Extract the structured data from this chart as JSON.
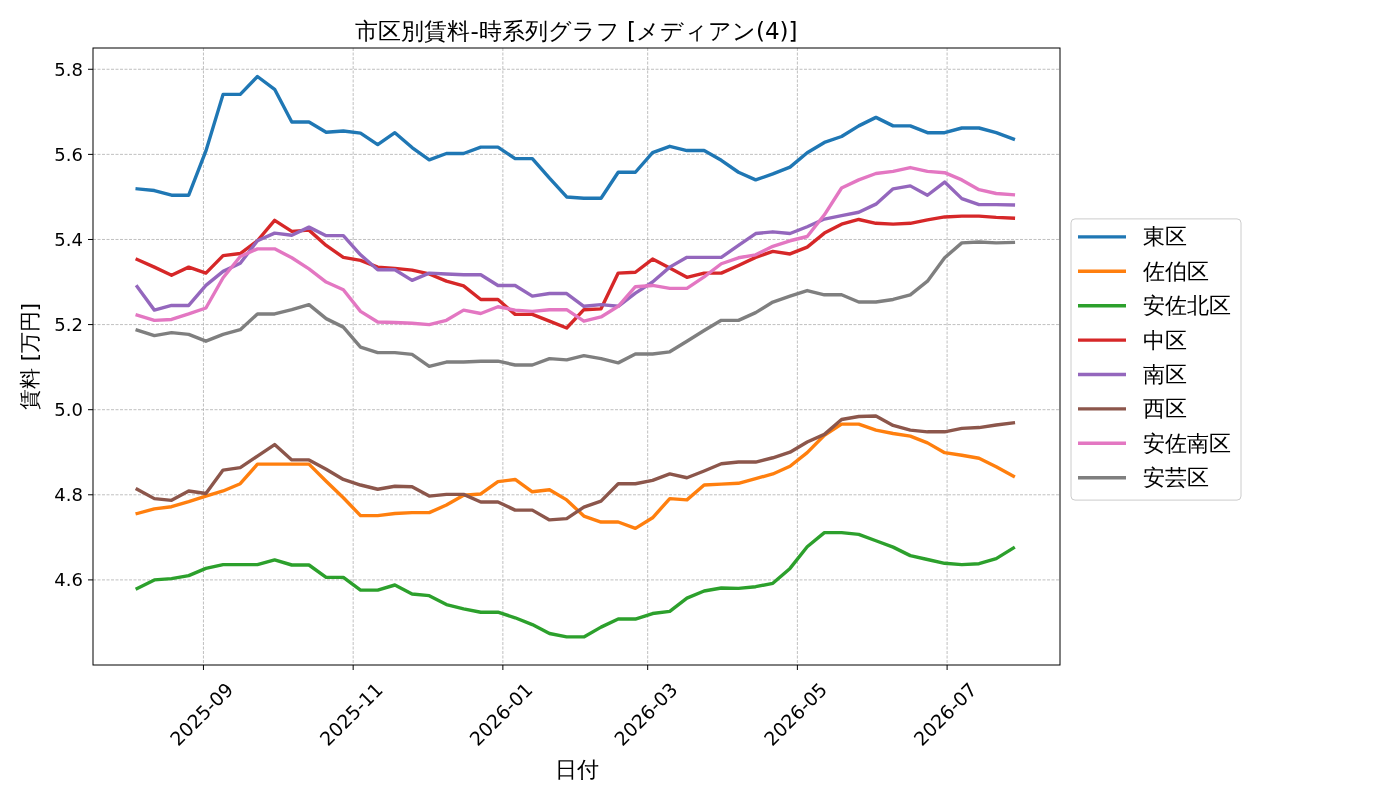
{
  "chart_data": {
    "type": "line",
    "title": "市区別賃料-時系列グラフ [メディアン(4)]",
    "xlabel": "日付",
    "ylabel": "賃料 [万円]",
    "x": [
      "2025-08-05",
      "2025-08-12",
      "2025-08-19",
      "2025-08-26",
      "2025-09-02",
      "2025-09-09",
      "2025-09-16",
      "2025-09-23",
      "2025-09-30",
      "2025-10-07",
      "2025-10-14",
      "2025-10-21",
      "2025-10-28",
      "2025-11-04",
      "2025-11-11",
      "2025-11-18",
      "2025-11-25",
      "2025-12-02",
      "2025-12-09",
      "2025-12-16",
      "2025-12-23",
      "2025-12-30",
      "2026-01-06",
      "2026-01-13",
      "2026-01-20",
      "2026-01-27",
      "2026-02-03",
      "2026-02-10",
      "2026-02-17",
      "2026-02-24",
      "2026-03-03",
      "2026-03-10",
      "2026-03-17",
      "2026-03-24",
      "2026-03-31",
      "2026-04-07",
      "2026-04-14",
      "2026-04-21",
      "2026-04-28",
      "2026-05-05",
      "2026-05-12",
      "2026-05-19",
      "2026-05-26",
      "2026-06-02",
      "2026-06-09",
      "2026-06-16",
      "2026-06-23",
      "2026-06-30",
      "2026-07-07",
      "2026-07-14",
      "2026-07-21",
      "2026-07-28"
    ],
    "series": [
      {
        "name": "東区",
        "color": "#1f77b4",
        "values": [
          5.519,
          5.515,
          5.504,
          5.504,
          5.608,
          5.741,
          5.741,
          5.783,
          5.753,
          5.676,
          5.676,
          5.652,
          5.655,
          5.65,
          5.623,
          5.651,
          5.616,
          5.587,
          5.602,
          5.602,
          5.617,
          5.617,
          5.59,
          5.59,
          5.544,
          5.5,
          5.497,
          5.497,
          5.558,
          5.558,
          5.604,
          5.619,
          5.609,
          5.609,
          5.586,
          5.558,
          5.54,
          5.554,
          5.57,
          5.604,
          5.628,
          5.642,
          5.667,
          5.687,
          5.667,
          5.667,
          5.651,
          5.651,
          5.662,
          5.662,
          5.651,
          5.636
        ]
      },
      {
        "name": "佐伯区",
        "color": "#ff7f0e",
        "values": [
          4.756,
          4.767,
          4.772,
          4.784,
          4.797,
          4.809,
          4.826,
          4.872,
          4.872,
          4.872,
          4.872,
          4.832,
          4.793,
          4.751,
          4.751,
          4.756,
          4.758,
          4.758,
          4.776,
          4.799,
          4.802,
          4.831,
          4.836,
          4.807,
          4.812,
          4.788,
          4.75,
          4.736,
          4.736,
          4.721,
          4.746,
          4.791,
          4.788,
          4.823,
          4.825,
          4.827,
          4.838,
          4.849,
          4.867,
          4.899,
          4.94,
          4.966,
          4.966,
          4.952,
          4.944,
          4.938,
          4.922,
          4.899,
          4.893,
          4.886,
          4.866,
          4.844
        ]
      },
      {
        "name": "安佐北区",
        "color": "#2ca02c",
        "values": [
          4.58,
          4.6,
          4.603,
          4.61,
          4.627,
          4.636,
          4.636,
          4.636,
          4.647,
          4.635,
          4.635,
          4.606,
          4.606,
          4.576,
          4.576,
          4.588,
          4.567,
          4.563,
          4.542,
          4.532,
          4.524,
          4.524,
          4.511,
          4.495,
          4.474,
          4.466,
          4.466,
          4.489,
          4.508,
          4.508,
          4.521,
          4.526,
          4.557,
          4.574,
          4.581,
          4.58,
          4.584,
          4.592,
          4.627,
          4.678,
          4.711,
          4.711,
          4.707,
          4.692,
          4.677,
          4.657,
          4.648,
          4.639,
          4.636,
          4.638,
          4.65,
          4.675
        ]
      },
      {
        "name": "中区",
        "color": "#d62728",
        "values": [
          5.353,
          5.335,
          5.316,
          5.335,
          5.321,
          5.362,
          5.367,
          5.397,
          5.445,
          5.419,
          5.422,
          5.386,
          5.358,
          5.351,
          5.335,
          5.332,
          5.328,
          5.319,
          5.302,
          5.291,
          5.259,
          5.259,
          5.224,
          5.224,
          5.208,
          5.192,
          5.235,
          5.237,
          5.321,
          5.323,
          5.354,
          5.333,
          5.311,
          5.321,
          5.321,
          5.339,
          5.358,
          5.372,
          5.366,
          5.382,
          5.415,
          5.436,
          5.447,
          5.438,
          5.436,
          5.438,
          5.446,
          5.453,
          5.455,
          5.455,
          5.452,
          5.45
        ]
      },
      {
        "name": "南区",
        "color": "#9467bd",
        "values": [
          5.289,
          5.234,
          5.245,
          5.245,
          5.292,
          5.325,
          5.344,
          5.397,
          5.415,
          5.41,
          5.429,
          5.409,
          5.409,
          5.364,
          5.329,
          5.329,
          5.304,
          5.321,
          5.319,
          5.317,
          5.317,
          5.292,
          5.292,
          5.267,
          5.273,
          5.273,
          5.243,
          5.247,
          5.243,
          5.274,
          5.3,
          5.335,
          5.358,
          5.358,
          5.358,
          5.386,
          5.414,
          5.418,
          5.414,
          5.43,
          5.448,
          5.456,
          5.464,
          5.483,
          5.519,
          5.526,
          5.504,
          5.535,
          5.496,
          5.482,
          5.482,
          5.481
        ]
      },
      {
        "name": "西区",
        "color": "#8c564b",
        "values": [
          4.813,
          4.791,
          4.787,
          4.809,
          4.803,
          4.858,
          4.864,
          4.891,
          4.918,
          4.882,
          4.882,
          4.86,
          4.836,
          4.823,
          4.813,
          4.82,
          4.819,
          4.797,
          4.801,
          4.801,
          4.783,
          4.783,
          4.764,
          4.764,
          4.741,
          4.744,
          4.771,
          4.785,
          4.826,
          4.826,
          4.834,
          4.849,
          4.84,
          4.856,
          4.873,
          4.877,
          4.877,
          4.887,
          4.9,
          4.924,
          4.942,
          4.977,
          4.984,
          4.985,
          4.963,
          4.952,
          4.948,
          4.948,
          4.956,
          4.958,
          4.964,
          4.969
        ]
      },
      {
        "name": "安佐南区",
        "color": "#e377c2",
        "values": [
          5.222,
          5.21,
          5.212,
          5.225,
          5.239,
          5.31,
          5.36,
          5.378,
          5.378,
          5.357,
          5.331,
          5.3,
          5.282,
          5.231,
          5.206,
          5.205,
          5.203,
          5.2,
          5.21,
          5.234,
          5.226,
          5.242,
          5.234,
          5.231,
          5.235,
          5.235,
          5.208,
          5.218,
          5.243,
          5.289,
          5.292,
          5.285,
          5.285,
          5.312,
          5.343,
          5.357,
          5.364,
          5.384,
          5.397,
          5.407,
          5.458,
          5.521,
          5.54,
          5.555,
          5.56,
          5.569,
          5.56,
          5.557,
          5.54,
          5.517,
          5.508,
          5.505
        ]
      },
      {
        "name": "安芸区",
        "color": "#7f7f7f",
        "values": [
          5.187,
          5.174,
          5.181,
          5.177,
          5.161,
          5.177,
          5.188,
          5.225,
          5.225,
          5.235,
          5.247,
          5.214,
          5.194,
          5.147,
          5.134,
          5.134,
          5.13,
          5.102,
          5.112,
          5.112,
          5.114,
          5.114,
          5.105,
          5.105,
          5.12,
          5.117,
          5.127,
          5.12,
          5.11,
          5.131,
          5.131,
          5.136,
          5.161,
          5.186,
          5.21,
          5.21,
          5.228,
          5.253,
          5.267,
          5.28,
          5.27,
          5.27,
          5.253,
          5.253,
          5.259,
          5.27,
          5.302,
          5.357,
          5.392,
          5.394,
          5.392,
          5.393
        ]
      }
    ],
    "xlim": [
      "2025-07-18",
      "2026-08-16"
    ],
    "xticks": [
      "2025-09",
      "2025-11",
      "2026-01",
      "2026-03",
      "2026-05",
      "2026-07"
    ],
    "ylim": [
      4.4,
      5.85
    ],
    "yticks": [
      4.6,
      4.8,
      {
        "value": 5,
        "label": "5.0"
      },
      5.2,
      5.4,
      5.6,
      5.8
    ],
    "grid": true,
    "legend": "right",
    "line_style": "solid"
  }
}
